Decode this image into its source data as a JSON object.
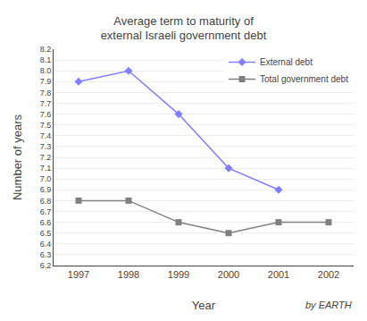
{
  "chart_data": {
    "type": "line",
    "title": "Average term to maturity of external Israeli government debt",
    "xlabel": "Year",
    "ylabel": "Number of years",
    "x": [
      1997,
      1998,
      1999,
      2000,
      2001,
      2002
    ],
    "series": [
      {
        "name": "External debt",
        "color": "#8080ff",
        "marker": "diamond",
        "values": [
          7.9,
          8.0,
          7.6,
          7.1,
          6.9,
          null
        ]
      },
      {
        "name": "Total government debt",
        "color": "#808080",
        "marker": "square",
        "values": [
          6.8,
          6.8,
          6.6,
          6.5,
          6.6,
          6.6
        ]
      }
    ],
    "xlim": [
      1996.5,
      2002.5
    ],
    "xticks": [
      1997,
      1998,
      1999,
      2000,
      2001,
      2002
    ],
    "ylim": [
      6.2,
      8.2
    ],
    "yticks": [
      6.2,
      6.3,
      6.4,
      6.5,
      6.6,
      6.7,
      6.8,
      6.9,
      {
        "value": 7,
        "label": "7.0"
      },
      7.1,
      7.2,
      7.3,
      7.4,
      7.5,
      7.6,
      7.7,
      7.8,
      7.9,
      {
        "value": 8,
        "label": "8.0"
      },
      8.1,
      8.2
    ],
    "grid": "y",
    "legend": "upper right",
    "annotations": [
      "by EARTH"
    ]
  }
}
